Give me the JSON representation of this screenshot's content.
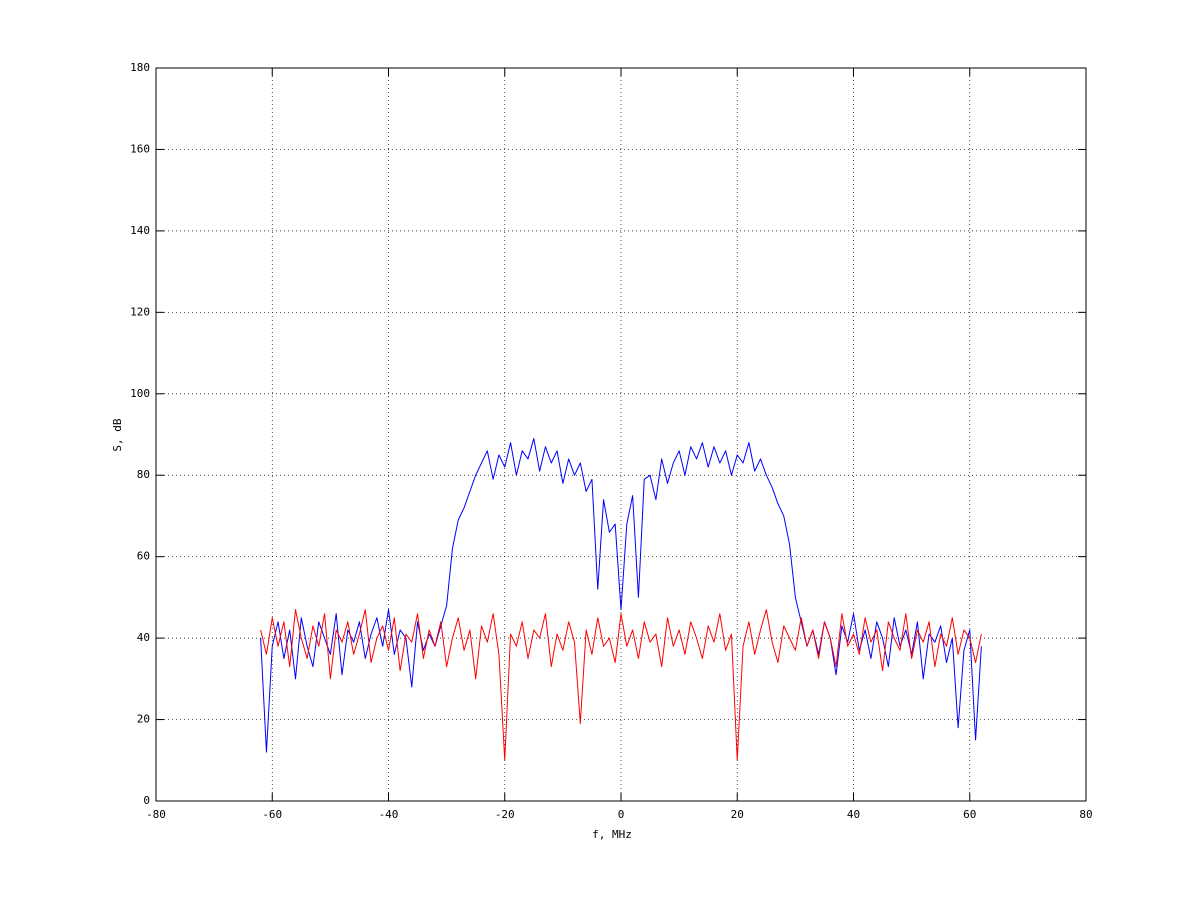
{
  "chart_data": {
    "type": "line",
    "xlabel": "f, MHz",
    "ylabel": "S, dB",
    "x": [
      -62,
      -61,
      -60,
      -59,
      -58,
      -57,
      -56,
      -55,
      -54,
      -53,
      -52,
      -51,
      -50,
      -49,
      -48,
      -47,
      -46,
      -45,
      -44,
      -43,
      -42,
      -41,
      -40,
      -39,
      -38,
      -37,
      -36,
      -35,
      -34,
      -33,
      -32,
      -31,
      -30,
      -29,
      -28,
      -27,
      -26,
      -25,
      -24,
      -23,
      -22,
      -21,
      -20,
      -19,
      -18,
      -17,
      -16,
      -15,
      -14,
      -13,
      -12,
      -11,
      -10,
      -9,
      -8,
      -7,
      -6,
      -5,
      -4,
      -3,
      -2,
      -1,
      0,
      1,
      2,
      3,
      4,
      5,
      6,
      7,
      8,
      9,
      10,
      11,
      12,
      13,
      14,
      15,
      16,
      17,
      18,
      19,
      20,
      21,
      22,
      23,
      24,
      25,
      26,
      27,
      28,
      29,
      30,
      31,
      32,
      33,
      34,
      35,
      36,
      37,
      38,
      39,
      40,
      41,
      42,
      43,
      44,
      45,
      46,
      47,
      48,
      49,
      50,
      51,
      52,
      53,
      54,
      55,
      56,
      57,
      58,
      59,
      60,
      61,
      62
    ],
    "series": [
      {
        "color": "#0000ff",
        "values": [
          40,
          12,
          38,
          44,
          35,
          42,
          30,
          45,
          38,
          33,
          44,
          40,
          36,
          46,
          31,
          42,
          39,
          44,
          35,
          41,
          45,
          38,
          47,
          36,
          42,
          40,
          28,
          44,
          37,
          41,
          38,
          43,
          48,
          62,
          69,
          72,
          76,
          80,
          83,
          86,
          79,
          85,
          82,
          88,
          80,
          86,
          84,
          89,
          81,
          87,
          83,
          86,
          78,
          84,
          80,
          83,
          76,
          79,
          52,
          74,
          66,
          68,
          47,
          68,
          75,
          50,
          79,
          80,
          74,
          84,
          78,
          83,
          86,
          80,
          87,
          84,
          88,
          82,
          87,
          83,
          86,
          80,
          85,
          83,
          88,
          81,
          84,
          80,
          77,
          73,
          70,
          63,
          50,
          44,
          38,
          42,
          36,
          44,
          40,
          31,
          43,
          39,
          46,
          37,
          42,
          35,
          44,
          40,
          33,
          45,
          38,
          42,
          36,
          44,
          30,
          41,
          39,
          43,
          34,
          40,
          18,
          37,
          42,
          15,
          38
        ]
      },
      {
        "color": "#ff0000",
        "values": [
          42,
          36,
          45,
          38,
          44,
          33,
          47,
          40,
          35,
          43,
          38,
          46,
          30,
          42,
          39,
          44,
          36,
          41,
          47,
          34,
          40,
          43,
          37,
          45,
          32,
          41,
          39,
          46,
          35,
          42,
          38,
          44,
          33,
          40,
          45,
          37,
          42,
          30,
          43,
          39,
          46,
          36,
          10,
          41,
          38,
          44,
          35,
          42,
          40,
          46,
          33,
          41,
          37,
          44,
          39,
          19,
          42,
          36,
          45,
          38,
          40,
          34,
          46,
          38,
          42,
          35,
          44,
          39,
          41,
          33,
          45,
          38,
          42,
          36,
          44,
          40,
          35,
          43,
          39,
          46,
          37,
          41,
          10,
          38,
          44,
          36,
          42,
          47,
          39,
          34,
          43,
          40,
          37,
          45,
          38,
          42,
          35,
          44,
          40,
          33,
          46,
          38,
          41,
          36,
          45,
          39,
          42,
          32,
          44,
          40,
          37,
          46,
          35,
          42,
          39,
          44,
          33,
          41,
          38,
          45,
          36,
          42,
          40,
          34,
          41
        ]
      }
    ],
    "xlim": [
      -80,
      80
    ],
    "xticks": [
      -80,
      -60,
      -40,
      -20,
      0,
      20,
      40,
      60,
      80
    ],
    "ylim": [
      0,
      180
    ],
    "yticks": [
      0,
      20,
      40,
      60,
      80,
      100,
      120,
      140,
      160,
      180
    ],
    "grid": true
  }
}
